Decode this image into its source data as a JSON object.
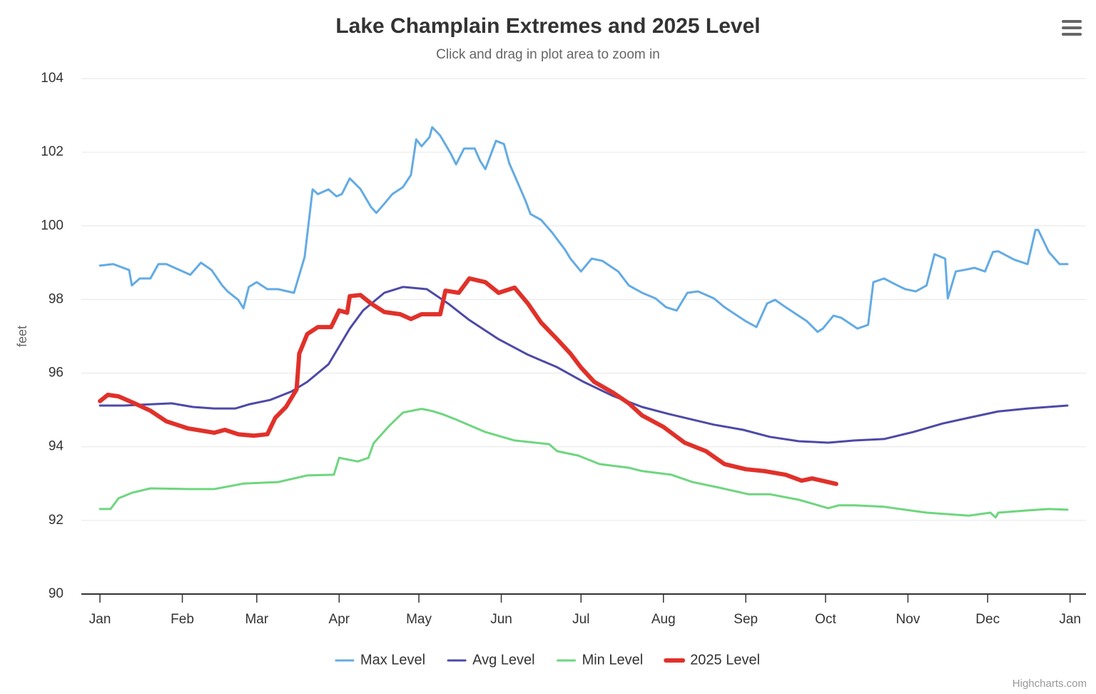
{
  "chart_data": {
    "type": "line",
    "title": "Lake Champlain Extremes and 2025 Level",
    "subtitle": "Click and drag in plot area to zoom in",
    "y_label": "feet",
    "credits": "Highcharts.com",
    "xlim": [
      -7,
      371
    ],
    "xticks": [
      {
        "value": 0,
        "label": "Jan"
      },
      {
        "value": 31,
        "label": "Feb"
      },
      {
        "value": 59,
        "label": "Mar"
      },
      {
        "value": 90,
        "label": "Apr"
      },
      {
        "value": 120,
        "label": "May"
      },
      {
        "value": 151,
        "label": "Jun"
      },
      {
        "value": 181,
        "label": "Jul"
      },
      {
        "value": 212,
        "label": "Aug"
      },
      {
        "value": 243,
        "label": "Sep"
      },
      {
        "value": 273,
        "label": "Oct"
      },
      {
        "value": 304,
        "label": "Nov"
      },
      {
        "value": 334,
        "label": "Dec"
      },
      {
        "value": 365,
        "label": "Jan"
      }
    ],
    "ylim": [
      90,
      104
    ],
    "yticks": [
      90,
      92,
      94,
      96,
      98,
      100,
      102,
      104
    ],
    "grid": true,
    "legend": "bottom",
    "series": [
      {
        "name": "Max Level",
        "color": "#63abe4",
        "width": 3,
        "x": [
          0,
          5,
          11,
          12,
          15,
          19,
          22,
          25,
          30,
          34,
          38,
          42,
          46,
          48,
          52,
          54,
          56,
          59,
          63,
          67,
          73,
          77,
          80,
          82,
          86,
          89,
          91,
          94,
          98,
          102,
          104,
          107,
          110,
          114,
          117,
          119,
          121,
          124,
          125,
          128,
          132,
          134,
          137,
          141,
          143,
          145,
          149,
          152,
          154,
          160,
          162,
          166,
          170,
          175,
          177,
          181,
          185,
          189,
          195,
          199,
          204,
          209,
          213,
          217,
          221,
          225,
          231,
          235,
          239,
          243,
          247,
          251,
          254,
          258,
          262,
          266,
          270,
          272,
          276,
          279,
          285,
          289,
          291,
          295,
          299,
          303,
          307,
          311,
          314,
          318,
          319,
          322,
          325,
          329,
          333,
          336,
          338,
          344,
          349,
          352,
          353,
          357,
          361,
          364
        ],
        "values": [
          98.92,
          98.96,
          98.8,
          98.38,
          98.57,
          98.57,
          98.96,
          98.96,
          98.8,
          98.67,
          99.0,
          98.8,
          98.38,
          98.22,
          97.99,
          97.76,
          98.34,
          98.47,
          98.28,
          98.28,
          98.18,
          99.15,
          100.99,
          100.86,
          100.99,
          100.8,
          100.86,
          101.29,
          101.0,
          100.51,
          100.35,
          100.6,
          100.86,
          101.05,
          101.38,
          102.35,
          102.16,
          102.41,
          102.68,
          102.45,
          101.96,
          101.67,
          102.1,
          102.1,
          101.77,
          101.54,
          102.31,
          102.22,
          101.7,
          100.7,
          100.32,
          100.16,
          99.83,
          99.35,
          99.11,
          98.76,
          99.11,
          99.05,
          98.76,
          98.38,
          98.18,
          98.03,
          97.79,
          97.7,
          98.18,
          98.22,
          98.03,
          97.79,
          97.6,
          97.41,
          97.25,
          97.89,
          97.99,
          97.79,
          97.6,
          97.41,
          97.12,
          97.21,
          97.56,
          97.5,
          97.21,
          97.31,
          98.47,
          98.57,
          98.42,
          98.28,
          98.22,
          98.38,
          99.23,
          99.11,
          98.03,
          98.76,
          98.8,
          98.86,
          98.76,
          99.29,
          99.31,
          99.08,
          98.96,
          99.89,
          99.89,
          99.29,
          98.96,
          98.96
        ]
      },
      {
        "name": "Avg Level",
        "color": "#4d4aa8",
        "width": 3,
        "x": [
          0,
          9,
          27,
          35,
          43,
          51,
          56,
          64,
          72,
          78,
          86,
          94,
          99,
          107,
          114,
          123,
          131,
          139,
          150,
          161,
          172,
          182,
          193,
          204,
          214,
          231,
          242,
          252,
          263,
          274,
          284,
          295,
          306,
          317,
          327,
          338,
          349,
          364
        ],
        "values": [
          95.12,
          95.12,
          95.18,
          95.08,
          95.04,
          95.04,
          95.15,
          95.27,
          95.5,
          95.76,
          96.24,
          97.21,
          97.7,
          98.18,
          98.34,
          98.28,
          97.89,
          97.44,
          96.92,
          96.5,
          96.16,
          95.76,
          95.38,
          95.08,
          94.89,
          94.6,
          94.46,
          94.27,
          94.15,
          94.11,
          94.17,
          94.21,
          94.4,
          94.63,
          94.79,
          94.96,
          95.04,
          95.12
        ]
      },
      {
        "name": "Min Level",
        "color": "#6ed67e",
        "width": 3,
        "x": [
          0,
          4,
          7,
          12,
          19,
          34,
          43,
          54,
          67,
          78,
          88,
          90,
          97,
          101,
          103,
          109,
          114,
          121,
          125,
          129,
          134,
          145,
          156,
          169,
          172,
          180,
          188,
          199,
          204,
          215,
          223,
          233,
          244,
          252,
          263,
          274,
          278,
          284,
          295,
          311,
          327,
          335,
          337,
          338,
          349,
          357,
          364
        ],
        "values": [
          92.31,
          92.31,
          92.6,
          92.75,
          92.87,
          92.85,
          92.85,
          93.0,
          93.04,
          93.22,
          93.24,
          93.7,
          93.6,
          93.7,
          94.1,
          94.58,
          94.93,
          95.03,
          94.97,
          94.88,
          94.74,
          94.4,
          94.17,
          94.07,
          93.88,
          93.76,
          93.53,
          93.43,
          93.34,
          93.24,
          93.04,
          92.89,
          92.71,
          92.71,
          92.56,
          92.33,
          92.41,
          92.41,
          92.37,
          92.21,
          92.13,
          92.21,
          92.08,
          92.21,
          92.27,
          92.31,
          92.29
        ]
      },
      {
        "name": "2025 Level",
        "color": "#e0312a",
        "width": 6,
        "x": [
          0,
          3,
          7,
          13,
          19,
          25,
          33,
          43,
          47,
          52,
          58,
          63,
          66,
          70,
          74,
          75,
          78,
          82,
          87,
          90,
          93,
          94,
          98,
          102,
          107,
          113,
          117,
          121,
          128,
          130,
          135,
          139,
          145,
          150,
          156,
          161,
          166,
          172,
          177,
          181,
          186,
          193,
          199,
          204,
          212,
          220,
          228,
          235,
          243,
          250,
          258,
          264,
          268,
          274,
          277
        ],
        "values": [
          95.24,
          95.41,
          95.37,
          95.18,
          94.98,
          94.69,
          94.5,
          94.38,
          94.46,
          94.34,
          94.3,
          94.34,
          94.79,
          95.08,
          95.56,
          96.53,
          97.06,
          97.25,
          97.25,
          97.7,
          97.64,
          98.09,
          98.12,
          97.89,
          97.66,
          97.6,
          97.47,
          97.6,
          97.6,
          98.24,
          98.18,
          98.57,
          98.47,
          98.18,
          98.32,
          97.89,
          97.37,
          96.92,
          96.53,
          96.15,
          95.76,
          95.47,
          95.18,
          94.85,
          94.54,
          94.11,
          93.88,
          93.53,
          93.39,
          93.34,
          93.24,
          93.08,
          93.14,
          93.04,
          92.99
        ]
      }
    ]
  }
}
